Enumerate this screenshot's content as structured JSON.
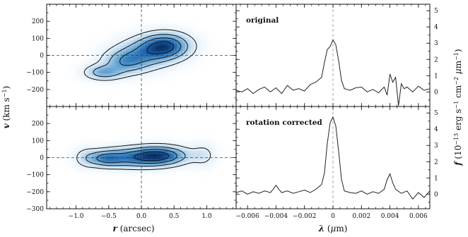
{
  "chart_data": [
    {
      "type": "heatmap",
      "panel": "pv-top",
      "title": "",
      "xlabel": "r (arcsec)",
      "ylabel": "v (km s⁻¹)",
      "xlim": [
        -1.45,
        1.45
      ],
      "ylim": [
        -300,
        300
      ],
      "xticks": [
        -1.0,
        -0.5,
        0.0,
        0.5,
        1.0
      ],
      "xtick_labels": [
        "",
        "",
        "",
        "",
        ""
      ],
      "yticks": [
        -200,
        -100,
        0,
        100,
        200
      ],
      "ytick_labels": [
        "−200",
        "−100",
        "0",
        "100",
        "200"
      ],
      "crosshair": {
        "r": 0,
        "v": 0
      },
      "colormap": [
        "#ffffff",
        "#e3eff9",
        "#a8cce8",
        "#5b9fd0",
        "#1f66ad",
        "#083069"
      ],
      "components": [
        {
          "r": 0.37,
          "v": 55,
          "sigma_r": 0.24,
          "sigma_v": 48,
          "amplitude": 1.0
        },
        {
          "r": 0.05,
          "v": 10,
          "sigma_r": 0.28,
          "sigma_v": 55,
          "amplitude": 0.55
        },
        {
          "r": -0.25,
          "v": -40,
          "sigma_r": 0.22,
          "sigma_v": 45,
          "amplitude": 0.55
        },
        {
          "r": -0.58,
          "v": -100,
          "sigma_r": 0.18,
          "sigma_v": 28,
          "amplitude": 0.55
        }
      ],
      "contour_levels": [
        0.12,
        0.32,
        0.55,
        0.8
      ]
    },
    {
      "type": "heatmap",
      "panel": "pv-bottom",
      "title": "",
      "xlabel": "r (arcsec)",
      "ylabel": "",
      "xlim": [
        -1.45,
        1.45
      ],
      "ylim": [
        -300,
        300
      ],
      "xticks": [
        -1.0,
        -0.5,
        0.0,
        0.5,
        1.0
      ],
      "xtick_labels": [
        "−1.0",
        "−0.5",
        "0.0",
        "0.5",
        "1.0"
      ],
      "yticks": [
        -300,
        -200,
        -100,
        0,
        100,
        200
      ],
      "ytick_labels": [
        "−300",
        "−200",
        "−100",
        "0",
        "100",
        "200"
      ],
      "crosshair": {
        "r": 0,
        "v": 0
      },
      "colormap": [
        "#ffffff",
        "#e3eff9",
        "#a8cce8",
        "#5b9fd0",
        "#1f66ad",
        "#083069"
      ],
      "components": [
        {
          "r": 0.3,
          "v": 12,
          "sigma_r": 0.27,
          "sigma_v": 35,
          "amplitude": 1.0
        },
        {
          "r": -0.1,
          "v": 0,
          "sigma_r": 0.33,
          "sigma_v": 38,
          "amplitude": 0.8
        },
        {
          "r": -0.55,
          "v": -5,
          "sigma_r": 0.18,
          "sigma_v": 30,
          "amplitude": 0.7
        },
        {
          "r": -0.85,
          "v": 0,
          "sigma_r": 0.12,
          "sigma_v": 40,
          "amplitude": 0.22
        },
        {
          "r": 0.95,
          "v": 15,
          "sigma_r": 0.12,
          "sigma_v": 45,
          "amplitude": 0.22
        }
      ],
      "contour_levels": [
        0.12,
        0.32,
        0.55,
        0.8
      ]
    },
    {
      "type": "line",
      "panel": "spec-top",
      "title": "original",
      "xlabel": "λ (μm)",
      "ylabel": "f (10⁻¹³ erg s⁻¹ cm⁻² μm⁻¹)",
      "xlim": [
        -0.0068,
        0.0068
      ],
      "ylim": [
        -0.9,
        5.4
      ],
      "xticks": [
        -0.006,
        -0.004,
        -0.002,
        0,
        0.002,
        0.004,
        0.006
      ],
      "xtick_labels": [
        "",
        "",
        "",
        "",
        "",
        "",
        ""
      ],
      "yticks": [
        0,
        1,
        2,
        3,
        4,
        5
      ],
      "ytick_labels": [
        "0",
        "1",
        "2",
        "3",
        "4",
        "5"
      ],
      "zero_line_x": 0,
      "x": [
        -0.0068,
        -0.0064,
        -0.006,
        -0.0056,
        -0.0052,
        -0.0048,
        -0.0044,
        -0.004,
        -0.0036,
        -0.0032,
        -0.0028,
        -0.0024,
        -0.002,
        -0.0016,
        -0.0012,
        -0.0008,
        -0.0006,
        -0.0004,
        -0.0002,
        0.0,
        0.0002,
        0.0004,
        0.0006,
        0.0008,
        0.0012,
        0.0016,
        0.002,
        0.0024,
        0.0028,
        0.0032,
        0.0036,
        0.0038,
        0.004,
        0.0042,
        0.0044,
        0.0046,
        0.0048,
        0.005,
        0.0052,
        0.0056,
        0.006,
        0.0064,
        0.0068
      ],
      "y": [
        0.1,
        0.0,
        0.2,
        -0.1,
        0.15,
        0.3,
        0.0,
        0.25,
        -0.1,
        0.4,
        0.1,
        0.2,
        0.05,
        0.45,
        0.6,
        0.9,
        1.8,
        2.6,
        2.8,
        3.2,
        2.9,
        1.9,
        0.7,
        0.2,
        0.1,
        0.25,
        0.3,
        0.0,
        0.15,
        -0.05,
        0.3,
        -0.2,
        1.1,
        0.6,
        0.9,
        -0.85,
        0.5,
        0.2,
        0.3,
        0.0,
        0.35,
        0.1,
        0.2
      ]
    },
    {
      "type": "line",
      "panel": "spec-bottom",
      "title": "rotation corrected",
      "xlabel": "λ (μm)",
      "ylabel": "",
      "xlim": [
        -0.0068,
        0.0068
      ],
      "ylim": [
        -0.9,
        5.4
      ],
      "xticks": [
        -0.006,
        -0.004,
        -0.002,
        0,
        0.002,
        0.004,
        0.006
      ],
      "xtick_labels": [
        "−0.006",
        "−0.004",
        "−0.002",
        "0",
        "0.002",
        "0.004",
        "0.006"
      ],
      "yticks": [
        -1,
        0,
        1,
        2,
        3,
        4,
        5
      ],
      "ytick_labels": [
        "−1",
        "0",
        "1",
        "2",
        "3",
        "4",
        "5"
      ],
      "zero_line_x": 0,
      "x": [
        -0.0068,
        -0.0064,
        -0.006,
        -0.0056,
        -0.0052,
        -0.0048,
        -0.0044,
        -0.0042,
        -0.004,
        -0.0038,
        -0.0036,
        -0.0032,
        -0.0028,
        -0.0024,
        -0.002,
        -0.0016,
        -0.0012,
        -0.0008,
        -0.0006,
        -0.0004,
        -0.0002,
        0.0,
        0.0002,
        0.0004,
        0.0006,
        0.0008,
        0.0012,
        0.0016,
        0.002,
        0.0024,
        0.0028,
        0.0032,
        0.0036,
        0.0038,
        0.004,
        0.0042,
        0.0044,
        0.0048,
        0.0052,
        0.0056,
        0.006,
        0.0064,
        0.0068
      ],
      "y": [
        0.1,
        0.2,
        0.0,
        0.15,
        0.05,
        0.2,
        0.1,
        0.3,
        0.55,
        0.3,
        0.1,
        0.2,
        0.05,
        0.15,
        0.25,
        0.1,
        0.3,
        0.6,
        1.3,
        3.1,
        4.4,
        4.75,
        4.2,
        2.6,
        0.9,
        0.2,
        0.1,
        0.05,
        0.2,
        0.0,
        0.15,
        0.05,
        0.3,
        0.9,
        1.25,
        0.7,
        0.3,
        0.05,
        0.2,
        -0.3,
        0.1,
        -0.2,
        0.2
      ]
    }
  ]
}
